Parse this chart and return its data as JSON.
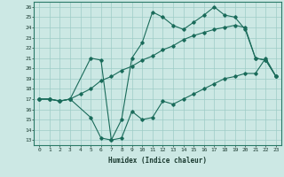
{
  "xlabel": "Humidex (Indice chaleur)",
  "background_color": "#cce8e4",
  "grid_color": "#9eccc6",
  "line_color": "#1a6b5a",
  "xlim": [
    -0.5,
    23.5
  ],
  "ylim": [
    12.5,
    26.5
  ],
  "xticks": [
    0,
    1,
    2,
    3,
    4,
    5,
    6,
    7,
    8,
    9,
    10,
    11,
    12,
    13,
    14,
    15,
    16,
    17,
    18,
    19,
    20,
    21,
    22,
    23
  ],
  "yticks": [
    13,
    14,
    15,
    16,
    17,
    18,
    19,
    20,
    21,
    22,
    23,
    24,
    25,
    26
  ],
  "line1_x": [
    0,
    1,
    2,
    3,
    5,
    6,
    7,
    8,
    9,
    10,
    11,
    12,
    13,
    14,
    15,
    16,
    17,
    18,
    19,
    20,
    21,
    22,
    23
  ],
  "line1_y": [
    17.0,
    17.0,
    16.8,
    17.0,
    15.2,
    13.2,
    13.0,
    13.2,
    15.8,
    15.0,
    15.2,
    16.8,
    16.5,
    17.0,
    17.5,
    18.0,
    18.5,
    19.0,
    19.2,
    19.5,
    19.5,
    21.0,
    19.2
  ],
  "line2_x": [
    0,
    1,
    2,
    3,
    4,
    5,
    6,
    7,
    8,
    9,
    10,
    11,
    12,
    13,
    14,
    15,
    16,
    17,
    18,
    19,
    20,
    21,
    22,
    23
  ],
  "line2_y": [
    17.0,
    17.0,
    16.8,
    17.0,
    17.5,
    18.0,
    18.8,
    19.2,
    19.8,
    20.2,
    20.8,
    21.2,
    21.8,
    22.2,
    22.8,
    23.2,
    23.5,
    23.8,
    24.0,
    24.2,
    24.0,
    21.0,
    20.8,
    19.2
  ],
  "line3_x": [
    0,
    1,
    2,
    3,
    5,
    6,
    7,
    8,
    9,
    10,
    11,
    12,
    13,
    14,
    15,
    16,
    17,
    18,
    19,
    20,
    21,
    22,
    23
  ],
  "line3_y": [
    17.0,
    17.0,
    16.8,
    17.0,
    21.0,
    20.8,
    13.0,
    15.0,
    21.0,
    22.5,
    25.5,
    25.0,
    24.2,
    23.8,
    24.5,
    25.2,
    26.0,
    25.2,
    25.0,
    23.8,
    21.0,
    20.8,
    19.2
  ]
}
